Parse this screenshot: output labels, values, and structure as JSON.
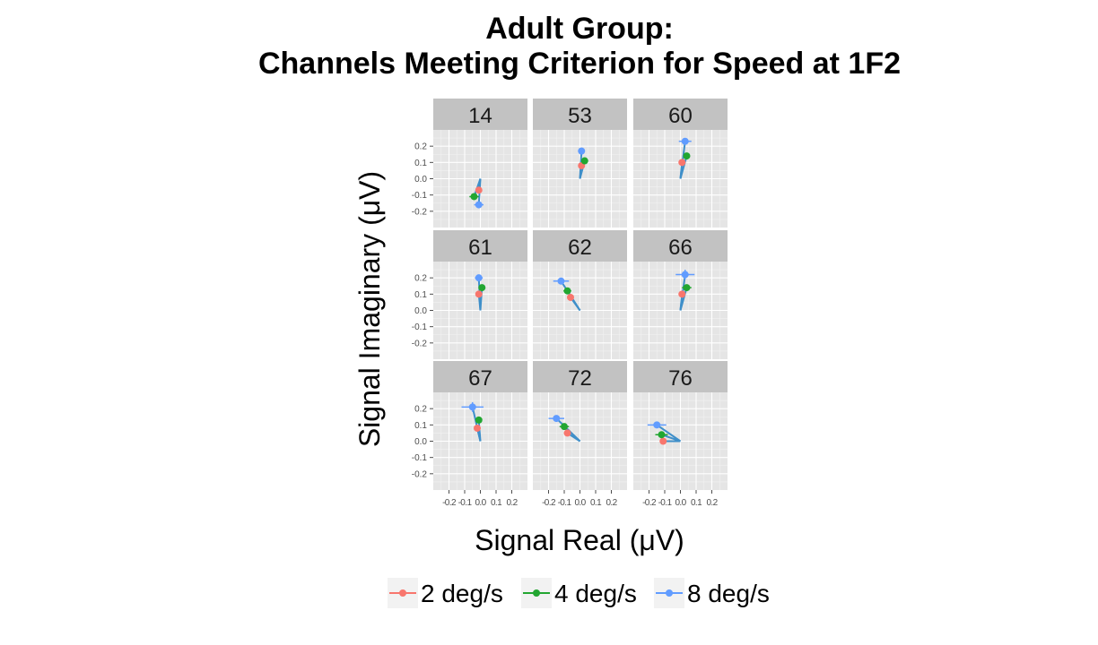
{
  "chart_data": {
    "type": "scatter",
    "title_lines": [
      "Adult Group:",
      "Channels Meeting Criterion for Speed at 1F2"
    ],
    "xlabel": "Signal Real (μV)",
    "ylabel": "Signal Imaginary (μV)",
    "xlim": [
      -0.3,
      0.3
    ],
    "ylim": [
      -0.3,
      0.3
    ],
    "x_ticks": [
      -0.2,
      -0.1,
      0.0,
      0.1,
      0.2
    ],
    "x_tick_labels": [
      "-0.2",
      "-0.1",
      "0.0",
      "0.1",
      "0.2"
    ],
    "y_ticks": [
      0.2,
      0.1,
      0.0,
      -0.1,
      -0.2
    ],
    "y_tick_labels": [
      "0.2",
      "0.1",
      "0.0",
      "-0.1",
      "-0.2"
    ],
    "grid": true,
    "legend_position": "bottom",
    "series": [
      {
        "name": "2 deg/s",
        "color": "#F8766D"
      },
      {
        "name": "4 deg/s",
        "color": "#22A631"
      },
      {
        "name": "8 deg/s",
        "color": "#619CFF"
      }
    ],
    "line_color": "#3F8FC9",
    "panels": [
      {
        "label": "14",
        "points": [
          {
            "series": "2 deg/s",
            "x": -0.01,
            "y": -0.07,
            "xerr": 0.01,
            "yerr": 0.01
          },
          {
            "series": "4 deg/s",
            "x": -0.04,
            "y": -0.11,
            "xerr": 0.03,
            "yerr": 0.01
          },
          {
            "series": "8 deg/s",
            "x": -0.01,
            "y": -0.16,
            "xerr": 0.03,
            "yerr": 0.015
          }
        ]
      },
      {
        "label": "53",
        "points": [
          {
            "series": "2 deg/s",
            "x": 0.01,
            "y": 0.08,
            "xerr": 0.01,
            "yerr": 0.01
          },
          {
            "series": "4 deg/s",
            "x": 0.03,
            "y": 0.11,
            "xerr": 0.01,
            "yerr": 0.01
          },
          {
            "series": "8 deg/s",
            "x": 0.01,
            "y": 0.17,
            "xerr": 0.01,
            "yerr": 0.01
          }
        ]
      },
      {
        "label": "60",
        "points": [
          {
            "series": "2 deg/s",
            "x": 0.01,
            "y": 0.1,
            "xerr": 0.01,
            "yerr": 0.01
          },
          {
            "series": "4 deg/s",
            "x": 0.04,
            "y": 0.14,
            "xerr": 0.01,
            "yerr": 0.015
          },
          {
            "series": "8 deg/s",
            "x": 0.03,
            "y": 0.23,
            "xerr": 0.04,
            "yerr": 0.02
          }
        ]
      },
      {
        "label": "61",
        "points": [
          {
            "series": "2 deg/s",
            "x": -0.01,
            "y": 0.1,
            "xerr": 0.01,
            "yerr": 0.01
          },
          {
            "series": "4 deg/s",
            "x": 0.01,
            "y": 0.14,
            "xerr": 0.01,
            "yerr": 0.01
          },
          {
            "series": "8 deg/s",
            "x": -0.01,
            "y": 0.2,
            "xerr": 0.025,
            "yerr": 0.02
          }
        ]
      },
      {
        "label": "62",
        "points": [
          {
            "series": "2 deg/s",
            "x": -0.06,
            "y": 0.08,
            "xerr": 0.01,
            "yerr": 0.01
          },
          {
            "series": "4 deg/s",
            "x": -0.08,
            "y": 0.12,
            "xerr": 0.025,
            "yerr": 0.01
          },
          {
            "series": "8 deg/s",
            "x": -0.12,
            "y": 0.18,
            "xerr": 0.05,
            "yerr": 0.02
          }
        ]
      },
      {
        "label": "66",
        "points": [
          {
            "series": "2 deg/s",
            "x": 0.01,
            "y": 0.1,
            "xerr": 0.02,
            "yerr": 0.01
          },
          {
            "series": "4 deg/s",
            "x": 0.04,
            "y": 0.14,
            "xerr": 0.03,
            "yerr": 0.015
          },
          {
            "series": "8 deg/s",
            "x": 0.03,
            "y": 0.22,
            "xerr": 0.06,
            "yerr": 0.03
          }
        ]
      },
      {
        "label": "67",
        "points": [
          {
            "series": "2 deg/s",
            "x": -0.02,
            "y": 0.08,
            "xerr": 0.01,
            "yerr": 0.015
          },
          {
            "series": "4 deg/s",
            "x": -0.01,
            "y": 0.13,
            "xerr": 0.02,
            "yerr": 0.015
          },
          {
            "series": "8 deg/s",
            "x": -0.05,
            "y": 0.21,
            "xerr": 0.07,
            "yerr": 0.03
          }
        ]
      },
      {
        "label": "72",
        "points": [
          {
            "series": "2 deg/s",
            "x": -0.08,
            "y": 0.05,
            "xerr": 0.01,
            "yerr": 0.01
          },
          {
            "series": "4 deg/s",
            "x": -0.1,
            "y": 0.09,
            "xerr": 0.03,
            "yerr": 0.015
          },
          {
            "series": "8 deg/s",
            "x": -0.15,
            "y": 0.14,
            "xerr": 0.05,
            "yerr": 0.015
          }
        ]
      },
      {
        "label": "76",
        "points": [
          {
            "series": "2 deg/s",
            "x": -0.11,
            "y": 0.0,
            "xerr": 0.015,
            "yerr": 0.01
          },
          {
            "series": "4 deg/s",
            "x": -0.12,
            "y": 0.04,
            "xerr": 0.04,
            "yerr": 0.01
          },
          {
            "series": "8 deg/s",
            "x": -0.15,
            "y": 0.1,
            "xerr": 0.06,
            "yerr": 0.02
          }
        ]
      }
    ]
  }
}
